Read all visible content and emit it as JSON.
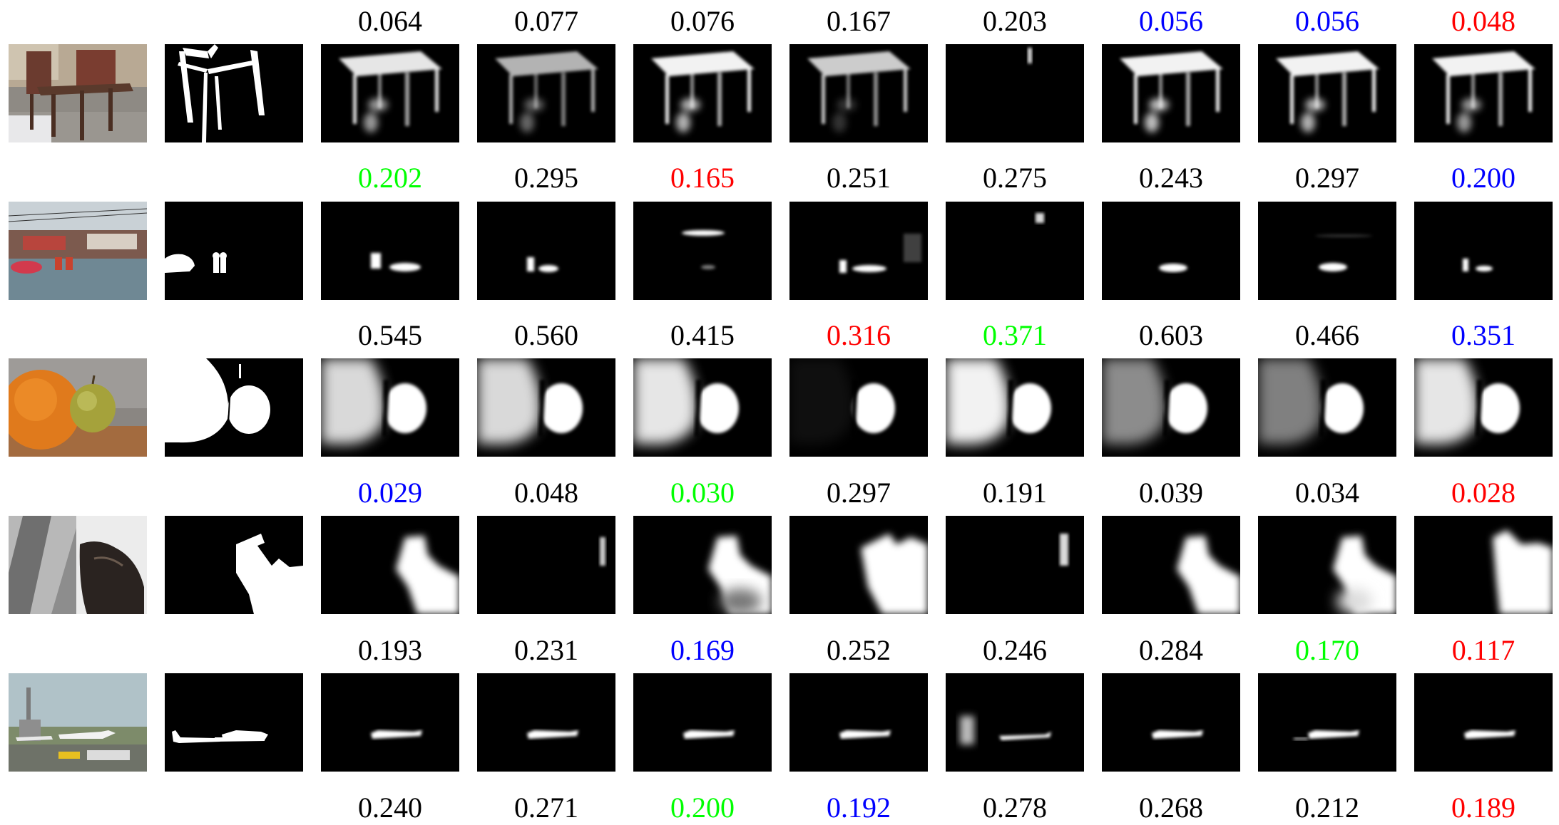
{
  "colors": {
    "default": "#000000",
    "red": "#ff0000",
    "green": "#00ff00",
    "blue": "#0000ff"
  },
  "rows": [
    {
      "scene": "chairs",
      "scores": [
        {
          "v": "0.064",
          "c": "default"
        },
        {
          "v": "0.077",
          "c": "default"
        },
        {
          "v": "0.076",
          "c": "default"
        },
        {
          "v": "0.167",
          "c": "default"
        },
        {
          "v": "0.203",
          "c": "default"
        },
        {
          "v": "0.056",
          "c": "blue"
        },
        {
          "v": "0.056",
          "c": "blue"
        },
        {
          "v": "0.048",
          "c": "red"
        }
      ]
    },
    {
      "scene": "street",
      "scores": [
        {
          "v": "0.202",
          "c": "green"
        },
        {
          "v": "0.295",
          "c": "default"
        },
        {
          "v": "0.165",
          "c": "red"
        },
        {
          "v": "0.251",
          "c": "default"
        },
        {
          "v": "0.275",
          "c": "default"
        },
        {
          "v": "0.243",
          "c": "default"
        },
        {
          "v": "0.297",
          "c": "default"
        },
        {
          "v": "0.200",
          "c": "blue"
        }
      ]
    },
    {
      "scene": "fruit",
      "scores": [
        {
          "v": "0.545",
          "c": "default"
        },
        {
          "v": "0.560",
          "c": "default"
        },
        {
          "v": "0.415",
          "c": "default"
        },
        {
          "v": "0.316",
          "c": "red"
        },
        {
          "v": "0.371",
          "c": "green"
        },
        {
          "v": "0.603",
          "c": "default"
        },
        {
          "v": "0.466",
          "c": "default"
        },
        {
          "v": "0.351",
          "c": "blue"
        }
      ]
    },
    {
      "scene": "cat",
      "scores": [
        {
          "v": "0.029",
          "c": "blue"
        },
        {
          "v": "0.048",
          "c": "default"
        },
        {
          "v": "0.030",
          "c": "green"
        },
        {
          "v": "0.297",
          "c": "default"
        },
        {
          "v": "0.191",
          "c": "default"
        },
        {
          "v": "0.039",
          "c": "default"
        },
        {
          "v": "0.034",
          "c": "default"
        },
        {
          "v": "0.028",
          "c": "red"
        }
      ]
    },
    {
      "scene": "airplane",
      "scores": [
        {
          "v": "0.193",
          "c": "default"
        },
        {
          "v": "0.231",
          "c": "default"
        },
        {
          "v": "0.169",
          "c": "blue"
        },
        {
          "v": "0.252",
          "c": "default"
        },
        {
          "v": "0.246",
          "c": "default"
        },
        {
          "v": "0.284",
          "c": "default"
        },
        {
          "v": "0.170",
          "c": "green"
        },
        {
          "v": "0.117",
          "c": "red"
        }
      ]
    }
  ],
  "bottom_scores": [
    {
      "v": "0.240",
      "c": "default"
    },
    {
      "v": "0.271",
      "c": "default"
    },
    {
      "v": "0.200",
      "c": "green"
    },
    {
      "v": "0.192",
      "c": "blue"
    },
    {
      "v": "0.278",
      "c": "default"
    },
    {
      "v": "0.268",
      "c": "default"
    },
    {
      "v": "0.212",
      "c": "default"
    },
    {
      "v": "0.189",
      "c": "red"
    }
  ]
}
